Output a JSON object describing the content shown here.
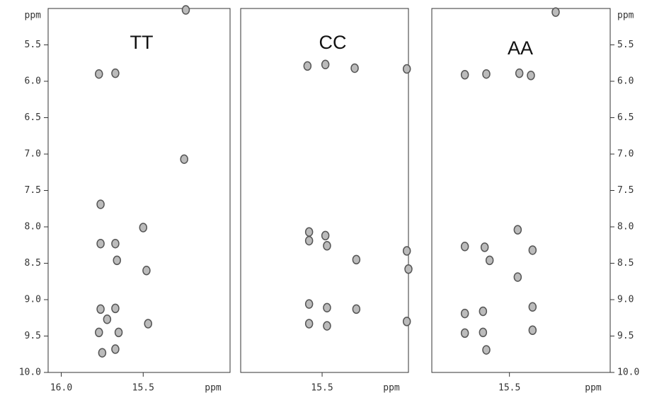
{
  "chart_data": [
    {
      "type": "scatter",
      "title": "TT",
      "x_label": "ppm",
      "y_label": "ppm",
      "y_inverted": true,
      "color": "#555555",
      "xlim": [
        16.08,
        14.97
      ],
      "ylim": [
        5.0,
        10.0
      ],
      "xticks": [
        {
          "value": 16.0,
          "label": "16.0"
        },
        15.5
      ],
      "yticks": [
        5.5,
        {
          "value": 6,
          "label": "6.0"
        },
        6.5,
        {
          "value": 7,
          "label": "7.0"
        },
        7.5,
        {
          "value": 8,
          "label": "8.0"
        },
        8.5,
        {
          "value": 9,
          "label": "9.0"
        },
        9.5,
        {
          "value": 10,
          "label": "10.0"
        }
      ],
      "x": [
        15.77,
        15.67,
        15.76,
        15.5,
        15.76,
        15.67,
        15.66,
        15.48,
        15.47,
        15.76,
        15.67,
        15.72,
        15.77,
        15.65,
        15.75,
        15.67,
        15.24,
        15.25
      ],
      "y": [
        5.9,
        5.89,
        7.69,
        8.01,
        8.23,
        8.23,
        8.46,
        8.6,
        9.33,
        9.13,
        9.12,
        9.27,
        9.45,
        9.45,
        9.73,
        9.68,
        5.02,
        7.07
      ]
    },
    {
      "type": "scatter",
      "title": "CC",
      "x_label": "ppm",
      "y_inverted": true,
      "color": "#555555",
      "xlim": [
        16.0,
        14.97
      ],
      "ylim": [
        5.0,
        10.0
      ],
      "xticks": [
        15.5
      ],
      "x": [
        15.59,
        15.48,
        15.3,
        14.98,
        15.58,
        15.58,
        15.48,
        15.47,
        15.29,
        14.98,
        14.97,
        15.58,
        15.47,
        15.29,
        14.98,
        15.58,
        15.47
      ],
      "y": [
        5.79,
        5.77,
        5.82,
        5.83,
        8.07,
        8.19,
        8.12,
        8.26,
        8.45,
        8.33,
        8.58,
        9.06,
        9.11,
        9.13,
        9.3,
        9.33,
        9.36
      ]
    },
    {
      "type": "scatter",
      "title": "AA",
      "x_label": "ppm",
      "y_label": "ppm",
      "y_inverted": true,
      "color": "#555555",
      "xlim": [
        15.97,
        14.89
      ],
      "ylim": [
        5.0,
        10.0
      ],
      "xticks": [
        15.5
      ],
      "yticks": [
        5.5,
        {
          "value": 6,
          "label": "6.0"
        },
        6.5,
        {
          "value": 7,
          "label": "7.0"
        },
        7.5,
        {
          "value": 8,
          "label": "8.0"
        },
        8.5,
        {
          "value": 9,
          "label": "9.0"
        },
        9.5,
        {
          "value": 10,
          "label": "10.0"
        }
      ],
      "x": [
        15.77,
        15.64,
        15.44,
        15.37,
        15.45,
        15.36,
        15.77,
        15.65,
        15.62,
        15.45,
        15.77,
        15.77,
        15.66,
        15.66,
        15.64,
        15.36,
        15.36,
        15.22
      ],
      "y": [
        5.91,
        5.9,
        5.89,
        5.92,
        8.04,
        8.32,
        8.27,
        8.28,
        8.46,
        8.69,
        9.19,
        9.46,
        9.16,
        9.45,
        9.69,
        9.1,
        9.42,
        5.05
      ]
    }
  ]
}
